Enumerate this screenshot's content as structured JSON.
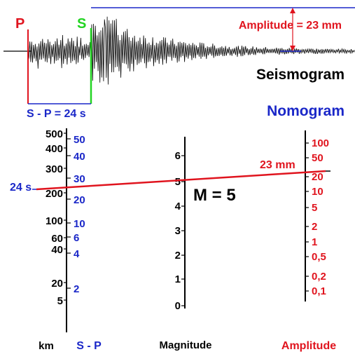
{
  "seismogram": {
    "p_label": "P",
    "s_label": "S",
    "amplitude_label": "Amplitude = 23 mm",
    "title": "Seismogram",
    "sp_label": "S - P = 24 s"
  },
  "nomogram": {
    "title": "Nomogram",
    "distance_scale": {
      "unit_label": "km",
      "ticks": [
        "500",
        "400",
        "300",
        "200",
        "100",
        "60",
        "40",
        "20",
        "5"
      ]
    },
    "sp_scale": {
      "unit_label": "S - P",
      "ticks": [
        "50",
        "40",
        "30",
        "20",
        "10",
        "6",
        "4",
        "2"
      ],
      "reading": "24 s"
    },
    "magnitude_scale": {
      "unit_label": "Magnitude",
      "ticks": [
        "6",
        "5",
        "4",
        "3",
        "2",
        "1",
        "0"
      ],
      "result": "M = 5"
    },
    "amplitude_scale": {
      "unit_label": "Amplitude",
      "ticks": [
        "100",
        "50",
        "20",
        "10",
        "5",
        "2",
        "1",
        "0,5",
        "0,2",
        "0,1"
      ],
      "reading": "23 mm"
    }
  },
  "colors": {
    "red": "#e0141e",
    "blue": "#1a27c8",
    "green": "#22d422",
    "black": "#000000"
  }
}
